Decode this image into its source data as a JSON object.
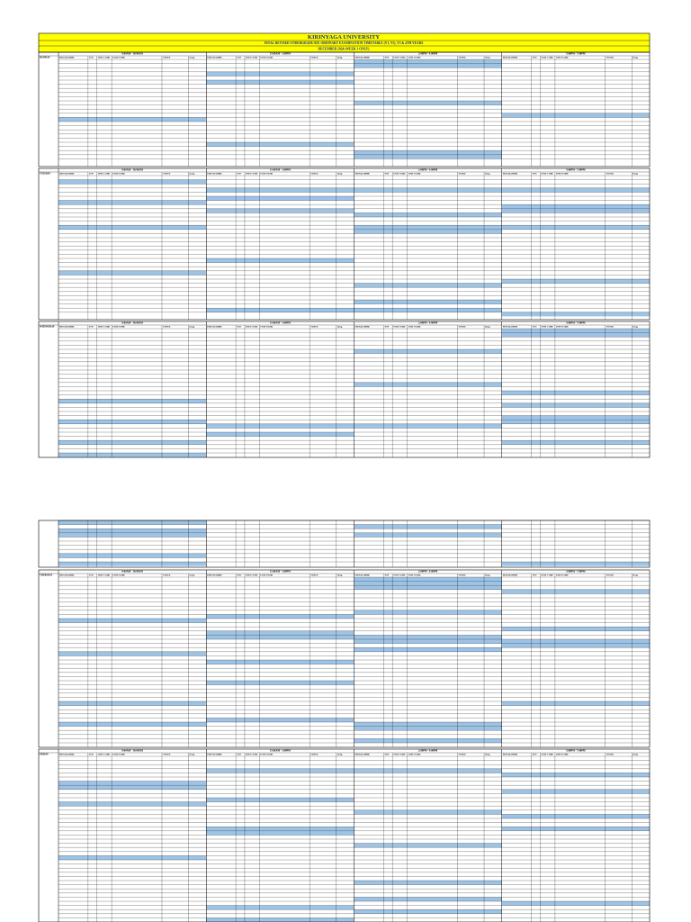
{
  "header": {
    "title": "KIRINYAGA UNIVERSITY",
    "subtitle": "FINAL REVISED UNDERGRADUATE ORDINARY EXAMINATION TIMETABLE (Y1, Y2), Y3 & 4TH YEARS",
    "period": "DECEMBER 2024 (WEEK 1 ONLY)"
  },
  "slots": [
    "8:00AM - 10:00AM",
    "11:00AM - 1:00PM",
    "2:00PM - 4:00PM",
    "5:00PM - 7:00PM"
  ],
  "columns": [
    "PROGRAMME",
    "YOS",
    "UNIT CODE",
    "UNIT NAME",
    "VENUE",
    "Invig."
  ],
  "days": [
    "MONDAY",
    "TUESDAY",
    "WEDNESDAY",
    "THURSDAY",
    "FRIDAY"
  ]
}
